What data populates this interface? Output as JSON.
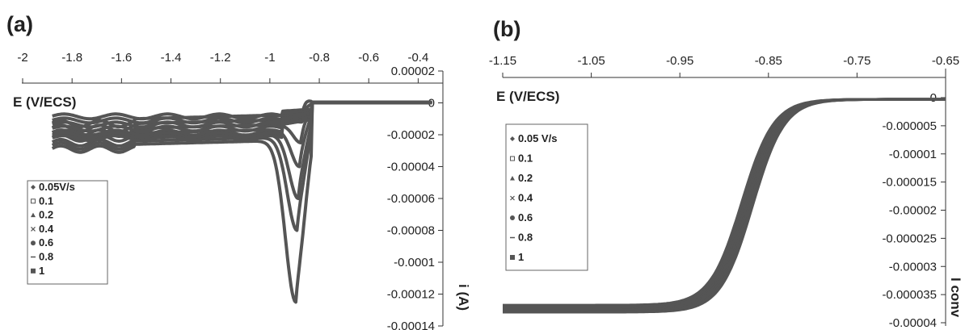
{
  "chart_data": [
    {
      "type": "line",
      "panel_label": "(a)",
      "xlabel": "E (V/ECS)",
      "ylabel": "i (A)",
      "xlim": [
        -2,
        -0.3
      ],
      "ylim": [
        -0.00014,
        2e-05
      ],
      "x_ticks": [
        "-2",
        "-1.8",
        "-1.6",
        "-1.4",
        "-1.2",
        "-1",
        "-0.8",
        "-0.6",
        "-0.4"
      ],
      "y_ticks": [
        "0.00002",
        "0",
        "-0.00002",
        "-0.00004",
        "-0.00006",
        "-0.00008",
        "-0.0001",
        "-0.00012",
        "-0.00014"
      ],
      "legend_position": "left",
      "series": [
        {
          "name": "0.05V/s",
          "marker": "diamond",
          "peak_x": -0.865,
          "peak_y": -4.5e-06,
          "plateau_y": -1e-05
        },
        {
          "name": "0.1",
          "marker": "square-open",
          "peak_x": -0.87,
          "peak_y": -1.2e-05,
          "plateau_y": -1.3e-05
        },
        {
          "name": "0.2",
          "marker": "triangle",
          "peak_x": -0.875,
          "peak_y": -2.5e-05,
          "plateau_y": -1.6e-05
        },
        {
          "name": "0.4",
          "marker": "x",
          "peak_x": -0.88,
          "peak_y": -4e-05,
          "plateau_y": -1.9e-05
        },
        {
          "name": "0.6",
          "marker": "circle",
          "peak_x": -0.885,
          "peak_y": -6e-05,
          "plateau_y": -2.2e-05
        },
        {
          "name": "0.8",
          "marker": "dash",
          "peak_x": -0.89,
          "peak_y": -8e-05,
          "plateau_y": -2.4e-05
        },
        {
          "name": "1",
          "marker": "square",
          "peak_x": -0.895,
          "peak_y": -0.000125,
          "plateau_y": -2.6e-05
        }
      ]
    },
    {
      "type": "line",
      "panel_label": "(b)",
      "xlabel": "E (V/ECS)",
      "ylabel": "I conv",
      "xlim": [
        -1.15,
        -0.65
      ],
      "ylim": [
        -4e-05,
        2e-06
      ],
      "x_ticks": [
        "-1.15",
        "-1.05",
        "-0.95",
        "-0.85",
        "-0.75",
        "-0.65"
      ],
      "y_ticks": [
        "0",
        "-0.000005",
        "-0.00001",
        "-0.000015",
        "-0.00002",
        "-0.000025",
        "-0.00003",
        "-0.000035",
        "-0.00004"
      ],
      "legend_position": "left",
      "series": [
        {
          "name": "0.05 V/s",
          "marker": "diamond",
          "half_wave_x": -0.868,
          "limit_y": -3.78e-05
        },
        {
          "name": "0.1",
          "marker": "square-open",
          "half_wave_x": -0.87,
          "limit_y": -3.76e-05
        },
        {
          "name": "0.2",
          "marker": "triangle",
          "half_wave_x": -0.872,
          "limit_y": -3.74e-05
        },
        {
          "name": "0.4",
          "marker": "x",
          "half_wave_x": -0.874,
          "limit_y": -3.72e-05
        },
        {
          "name": "0.6",
          "marker": "circle",
          "half_wave_x": -0.876,
          "limit_y": -3.7e-05
        },
        {
          "name": "0.8",
          "marker": "dash",
          "half_wave_x": -0.878,
          "limit_y": -3.68e-05
        },
        {
          "name": "1",
          "marker": "square",
          "half_wave_x": -0.88,
          "limit_y": -3.66e-05
        }
      ]
    }
  ]
}
